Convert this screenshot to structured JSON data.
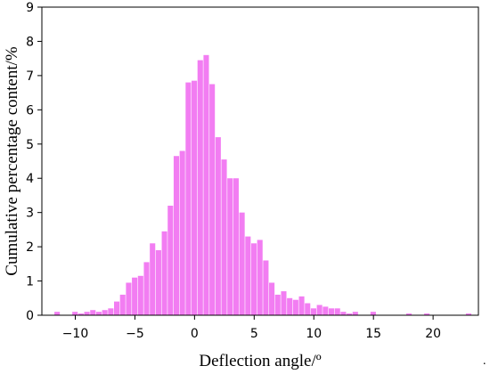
{
  "chart_data": {
    "type": "bar",
    "xlabel": "Deflection angle/º",
    "ylabel": "Cumulative percentage content/%",
    "xlim": [
      -12.8,
      23.8
    ],
    "ylim": [
      0,
      9
    ],
    "xticks": [
      -10,
      -5,
      0,
      5,
      10,
      15,
      20
    ],
    "yticks": [
      0,
      1,
      2,
      3,
      4,
      5,
      6,
      7,
      8,
      9
    ],
    "bin_width": 0.5,
    "grid": false,
    "color": "#f27df2",
    "stray_mark": ".",
    "x": [
      -11.5,
      -11.0,
      -10.5,
      -10.0,
      -9.5,
      -9.0,
      -8.5,
      -8.0,
      -7.5,
      -7.0,
      -6.5,
      -6.0,
      -5.5,
      -5.0,
      -4.5,
      -4.0,
      -3.5,
      -3.0,
      -2.5,
      -2.0,
      -1.5,
      -1.0,
      -0.5,
      0.0,
      0.5,
      1.0,
      1.5,
      2.0,
      2.5,
      3.0,
      3.5,
      4.0,
      4.5,
      5.0,
      5.5,
      6.0,
      6.5,
      7.0,
      7.5,
      8.0,
      8.5,
      9.0,
      9.5,
      10.0,
      10.5,
      11.0,
      11.5,
      12.0,
      12.5,
      13.0,
      13.5,
      14.0,
      14.5,
      15.0,
      15.5,
      16.0,
      16.5,
      17.0,
      17.5,
      18.0,
      18.5,
      19.0,
      19.5,
      20.0,
      20.5,
      21.0,
      21.5,
      22.0,
      22.5,
      23.0
    ],
    "values": [
      0.1,
      0.0,
      0.0,
      0.1,
      0.05,
      0.1,
      0.15,
      0.1,
      0.15,
      0.2,
      0.4,
      0.6,
      0.95,
      1.1,
      1.15,
      1.55,
      2.1,
      1.9,
      2.45,
      3.2,
      4.65,
      4.8,
      6.8,
      6.85,
      7.45,
      7.6,
      6.75,
      5.2,
      4.55,
      4.0,
      4.0,
      3.0,
      2.3,
      2.1,
      2.2,
      1.6,
      0.95,
      0.6,
      0.7,
      0.5,
      0.45,
      0.55,
      0.35,
      0.2,
      0.3,
      0.25,
      0.2,
      0.2,
      0.1,
      0.05,
      0.1,
      0.0,
      0.0,
      0.1,
      0.0,
      0.0,
      0.0,
      0.0,
      0.0,
      0.05,
      0.0,
      0.0,
      0.05,
      0.0,
      0.0,
      0.0,
      0.0,
      0.0,
      0.0,
      0.05
    ]
  }
}
